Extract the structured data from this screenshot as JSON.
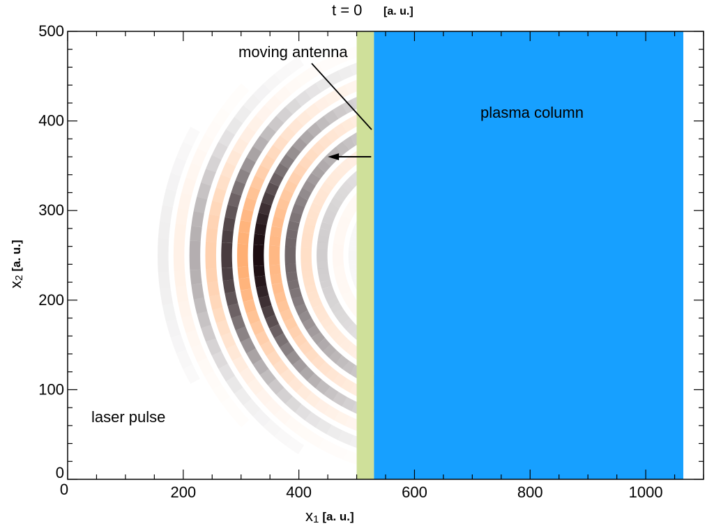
{
  "title": {
    "main": "t = 0",
    "unit": "[a. u.]"
  },
  "axes": {
    "x": {
      "var": "x",
      "sub": "1",
      "unit": "[a. u.]",
      "min": 0,
      "max": 1100,
      "ticks": [
        "0",
        "200",
        "400",
        "600",
        "800",
        "1000"
      ],
      "tick_values": [
        0,
        200,
        400,
        600,
        800,
        1000
      ]
    },
    "y": {
      "var": "x",
      "sub": "2",
      "unit": "[a. u.]",
      "min": 0,
      "max": 500,
      "ticks": [
        "0",
        "100",
        "200",
        "300",
        "400",
        "500"
      ],
      "tick_values": [
        0,
        100,
        200,
        300,
        400,
        500
      ]
    }
  },
  "regions": {
    "antenna": {
      "x_start": 500,
      "x_end": 530,
      "color": "#cfe09a"
    },
    "plasma": {
      "x_start": 530,
      "x_end": 1065,
      "color": "#17a0ff"
    }
  },
  "pulse": {
    "center_x": 320,
    "center_y": 250,
    "curvature_center_x": 620,
    "wavelength": 55,
    "envelope_x_sigma": 95,
    "envelope_y_sigma": 130,
    "colors": {
      "dark": "#1a0a0e",
      "orange": "#ffa868"
    }
  },
  "arrow": {
    "x_from": 525,
    "x_to": 450,
    "y": 360
  },
  "labels": {
    "antenna": "moving antenna",
    "plasma": "plasma column",
    "pulse": "laser pulse"
  }
}
